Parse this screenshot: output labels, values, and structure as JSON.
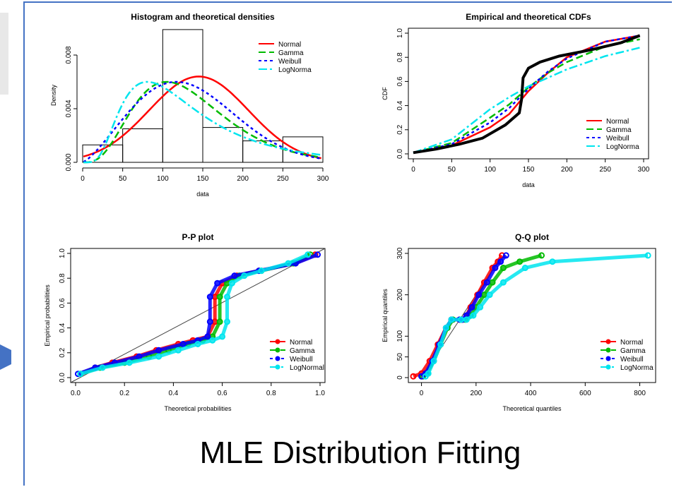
{
  "slide": {
    "title": "MLE Distribution Fitting"
  },
  "colors": {
    "normal": "#ff0000",
    "gamma": "#00bb00",
    "weibull": "#0000ff",
    "lognormal": "#00e5ee",
    "empirical": "#000000",
    "frame": "#4472c4"
  },
  "chart_data": [
    {
      "type": "histogram",
      "title": "Histogram and theoretical densities",
      "xlabel": "data",
      "ylabel": "Density",
      "xlim": [
        0,
        300
      ],
      "ylim": [
        0,
        0.01
      ],
      "xticks": [
        "0",
        "50",
        "100",
        "150",
        "200",
        "250",
        "300"
      ],
      "yticks": [
        "0.000",
        "0.004",
        "0.008"
      ],
      "ytick_values": [
        0,
        0.004,
        0.008
      ],
      "bins": [
        [
          0,
          50
        ],
        [
          50,
          100
        ],
        [
          100,
          150
        ],
        [
          150,
          200
        ],
        [
          200,
          250
        ],
        [
          250,
          300
        ]
      ],
      "values": [
        0.0013,
        0.0025,
        0.0099,
        0.0026,
        0.0016,
        0.0019
      ],
      "legend": [
        "Normal",
        "Gamma",
        "Weibull",
        "LogNorma"
      ],
      "legend_position": "top-right"
    },
    {
      "type": "line",
      "title": "Empirical and theoretical CDFs",
      "xlabel": "data",
      "ylabel": "CDF",
      "xlim": [
        0,
        300
      ],
      "ylim": [
        0,
        1
      ],
      "xticks": [
        "0",
        "50",
        "100",
        "150",
        "200",
        "250",
        "300"
      ],
      "yticks": [
        "0.0",
        "0.2",
        "0.4",
        "0.6",
        "0.8",
        "1.0"
      ],
      "series": [
        {
          "name": "Normal",
          "x": [
            0,
            50,
            100,
            125,
            150,
            175,
            200,
            250,
            295
          ],
          "y": [
            0.01,
            0.07,
            0.22,
            0.33,
            0.52,
            0.67,
            0.8,
            0.93,
            0.98
          ]
        },
        {
          "name": "Gamma",
          "x": [
            0,
            50,
            100,
            125,
            150,
            175,
            200,
            250,
            295
          ],
          "y": [
            0.01,
            0.09,
            0.3,
            0.41,
            0.55,
            0.67,
            0.76,
            0.89,
            0.95
          ]
        },
        {
          "name": "Weibull",
          "x": [
            0,
            50,
            100,
            125,
            150,
            175,
            200,
            250,
            295
          ],
          "y": [
            0.01,
            0.08,
            0.26,
            0.38,
            0.54,
            0.68,
            0.79,
            0.93,
            0.98
          ]
        },
        {
          "name": "LogNorma",
          "x": [
            0,
            50,
            100,
            125,
            150,
            175,
            200,
            250,
            295
          ],
          "y": [
            0.01,
            0.12,
            0.37,
            0.47,
            0.56,
            0.63,
            0.7,
            0.81,
            0.88
          ]
        },
        {
          "name": "Empirical",
          "x": [
            0,
            30,
            60,
            90,
            120,
            138,
            141,
            143,
            150,
            165,
            190,
            230,
            270,
            295
          ],
          "y": [
            0.01,
            0.04,
            0.08,
            0.13,
            0.24,
            0.34,
            0.45,
            0.63,
            0.71,
            0.76,
            0.81,
            0.86,
            0.92,
            0.98
          ]
        }
      ],
      "legend": [
        "Normal",
        "Gamma",
        "Weibull",
        "LogNorma"
      ],
      "legend_position": "bottom-right"
    },
    {
      "type": "scatter",
      "title": "P-P plot",
      "xlabel": "Theoretical probabilities",
      "ylabel": "Empirical probabilities",
      "xlim": [
        0,
        1
      ],
      "ylim": [
        0,
        1
      ],
      "xticks": [
        "0.0",
        "0.2",
        "0.4",
        "0.6",
        "0.8",
        "1.0"
      ],
      "yticks": [
        "0.0",
        "0.2",
        "0.4",
        "0.6",
        "0.8",
        "1.0"
      ],
      "series": [
        {
          "name": "Normal",
          "x": [
            0.02,
            0.08,
            0.15,
            0.25,
            0.33,
            0.42,
            0.48,
            0.54,
            0.57,
            0.57,
            0.6,
            0.66,
            0.75,
            0.9,
            0.98
          ],
          "y": [
            0.03,
            0.08,
            0.12,
            0.17,
            0.22,
            0.27,
            0.3,
            0.33,
            0.45,
            0.65,
            0.76,
            0.82,
            0.86,
            0.92,
            0.99
          ]
        },
        {
          "name": "Gamma",
          "x": [
            0.02,
            0.1,
            0.2,
            0.3,
            0.38,
            0.46,
            0.52,
            0.56,
            0.59,
            0.59,
            0.62,
            0.67,
            0.76,
            0.89,
            0.96
          ],
          "y": [
            0.03,
            0.08,
            0.12,
            0.17,
            0.22,
            0.27,
            0.3,
            0.33,
            0.45,
            0.65,
            0.76,
            0.82,
            0.86,
            0.92,
            0.99
          ]
        },
        {
          "name": "Weibull",
          "x": [
            0.01,
            0.08,
            0.16,
            0.26,
            0.34,
            0.44,
            0.5,
            0.54,
            0.55,
            0.55,
            0.58,
            0.65,
            0.75,
            0.9,
            0.99
          ],
          "y": [
            0.03,
            0.08,
            0.12,
            0.17,
            0.22,
            0.27,
            0.3,
            0.33,
            0.45,
            0.65,
            0.76,
            0.82,
            0.86,
            0.92,
            0.99
          ]
        },
        {
          "name": "LogNormal",
          "x": [
            0.02,
            0.11,
            0.22,
            0.34,
            0.42,
            0.5,
            0.56,
            0.6,
            0.62,
            0.62,
            0.64,
            0.69,
            0.76,
            0.87,
            0.95
          ],
          "y": [
            0.03,
            0.08,
            0.12,
            0.17,
            0.22,
            0.27,
            0.3,
            0.33,
            0.45,
            0.65,
            0.76,
            0.82,
            0.86,
            0.92,
            0.99
          ]
        }
      ],
      "legend": [
        "Normal",
        "Gamma",
        "Weibull",
        "LogNormal"
      ],
      "legend_position": "bottom-right"
    },
    {
      "type": "scatter",
      "title": "Q-Q plot",
      "xlabel": "Theoretical quantiles",
      "ylabel": "Empirical quantiles",
      "xlim": [
        -30,
        840
      ],
      "ylim": [
        0,
        300
      ],
      "xticks": [
        "0",
        "200",
        "400",
        "600",
        "800"
      ],
      "yticks": [
        "0",
        "50",
        "100",
        "200",
        "300"
      ],
      "ytick_values": [
        0,
        50,
        100,
        200,
        300
      ],
      "series": [
        {
          "name": "Normal",
          "x": [
            -30,
            0,
            30,
            60,
            90,
            110,
            140,
            150,
            165,
            180,
            205,
            230,
            260,
            280,
            295
          ],
          "y": [
            3,
            10,
            40,
            80,
            120,
            140,
            140,
            140,
            150,
            170,
            200,
            230,
            265,
            280,
            295
          ]
        },
        {
          "name": "Gamma",
          "x": [
            5,
            20,
            45,
            70,
            95,
            115,
            145,
            160,
            180,
            200,
            230,
            260,
            300,
            360,
            440
          ],
          "y": [
            3,
            10,
            40,
            80,
            120,
            140,
            140,
            140,
            150,
            170,
            200,
            230,
            265,
            280,
            295
          ]
        },
        {
          "name": "Weibull",
          "x": [
            0,
            15,
            40,
            65,
            90,
            110,
            140,
            150,
            165,
            185,
            210,
            240,
            270,
            290,
            310
          ],
          "y": [
            3,
            10,
            40,
            80,
            120,
            140,
            140,
            140,
            150,
            170,
            200,
            230,
            265,
            280,
            295
          ]
        },
        {
          "name": "LogNorma",
          "x": [
            15,
            25,
            45,
            70,
            90,
            110,
            145,
            165,
            190,
            215,
            250,
            300,
            380,
            480,
            830
          ],
          "y": [
            3,
            10,
            40,
            80,
            120,
            140,
            140,
            140,
            150,
            170,
            200,
            230,
            265,
            280,
            295
          ]
        }
      ],
      "legend": [
        "Normal",
        "Gamma",
        "Weibull",
        "LogNorma"
      ],
      "legend_position": "bottom-right"
    }
  ]
}
